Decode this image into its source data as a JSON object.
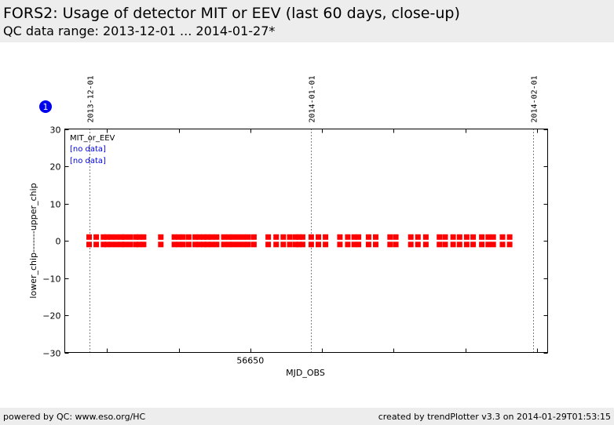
{
  "header": {
    "title": "FORS2: Usage of detector MIT or EEV (last 60 days, close-up)",
    "subtitle": "QC data range: 2013-12-01 ... 2014-01-27*"
  },
  "badge": {
    "label": "1",
    "color": "#0000ee"
  },
  "footer": {
    "left": "powered by QC: www.eso.org/HC",
    "right": "created by trendPlotter v3.3 on 2014-01-29T01:53:15"
  },
  "chart_data": {
    "type": "scatter",
    "title": "",
    "xlabel": "MJD_OBS",
    "ylabel": "lower_chip-------upper_chip",
    "xlim": [
      56624.1,
      56691.5
    ],
    "ylim": [
      -30,
      30
    ],
    "x_ticks": [
      56650
    ],
    "y_ticks": [
      30,
      20,
      10,
      0,
      -10,
      -20,
      -30
    ],
    "y_tick_labels": [
      "30",
      "20",
      "10",
      "0",
      "−10",
      "−20",
      "−30"
    ],
    "date_markers": [
      {
        "label": "2013-12-01",
        "x": 56627.5
      },
      {
        "label": "2014-01-01",
        "x": 56658.5
      },
      {
        "label": "2014-02-01",
        "x": 56689.5
      }
    ],
    "legend": {
      "placement": "top-left",
      "title": "MIT_or_EEV",
      "entries": [
        "[no data]",
        "[no data]"
      ],
      "entry_color": "#0000ee"
    },
    "marker_color": "#ff0000",
    "series": [
      {
        "name": "upper_chip",
        "y": 1,
        "x": [
          56627.5,
          56628.5,
          56629.5,
          56630.0,
          56630.6,
          56631.3,
          56632.0,
          56632.5,
          56633.2,
          56634.0,
          56634.5,
          56635.1,
          56637.5,
          56639.4,
          56640.0,
          56640.6,
          56641.4,
          56642.3,
          56642.9,
          56643.5,
          56644.0,
          56644.6,
          56645.3,
          56646.3,
          56647.0,
          56647.6,
          56648.3,
          56649.0,
          56649.7,
          56650.5,
          56652.5,
          56653.6,
          56654.6,
          56655.5,
          56656.3,
          56656.8,
          56657.3,
          56658.5,
          56659.5,
          56660.5,
          56662.5,
          56663.6,
          56664.5,
          56665.1,
          56666.5,
          56667.5,
          56669.5,
          56670.3,
          56672.4,
          56673.4,
          56674.5,
          56676.4,
          56677.2,
          56678.3,
          56679.2,
          56680.2,
          56681.1,
          56682.3,
          56683.2,
          56683.9,
          56685.2,
          56686.2
        ]
      },
      {
        "name": "lower_chip",
        "y": -1,
        "x": [
          56627.5,
          56628.5,
          56629.5,
          56630.0,
          56630.6,
          56631.3,
          56632.0,
          56632.5,
          56633.2,
          56634.0,
          56634.5,
          56635.1,
          56637.5,
          56639.4,
          56640.0,
          56640.6,
          56641.4,
          56642.3,
          56642.9,
          56643.5,
          56644.0,
          56644.6,
          56645.3,
          56646.3,
          56647.0,
          56647.6,
          56648.3,
          56649.0,
          56649.7,
          56650.5,
          56652.5,
          56653.6,
          56654.6,
          56655.5,
          56656.3,
          56656.8,
          56657.3,
          56658.5,
          56659.5,
          56660.5,
          56662.5,
          56663.6,
          56664.5,
          56665.1,
          56666.5,
          56667.5,
          56669.5,
          56670.3,
          56672.4,
          56673.4,
          56674.5,
          56676.4,
          56677.2,
          56678.3,
          56679.2,
          56680.2,
          56681.1,
          56682.3,
          56683.2,
          56683.9,
          56685.2,
          56686.2
        ]
      }
    ]
  }
}
